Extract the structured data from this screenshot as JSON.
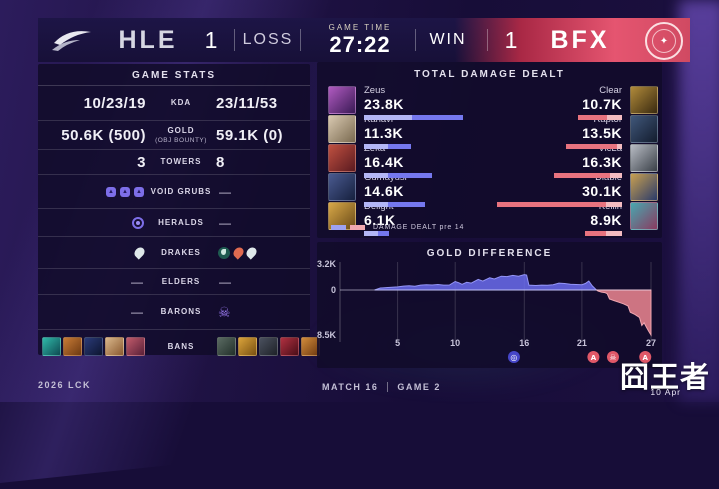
{
  "meta": {
    "league": "2026 LCK",
    "match": "MATCH 16",
    "game": "GAME 2",
    "watermark": "囧王者",
    "date": "10 Apr"
  },
  "header": {
    "game_time_label": "GAME TIME",
    "game_time": "27:22",
    "left_team": {
      "name": "HLE",
      "score": "1",
      "result": "LOSS",
      "logo": "hle-swoosh-logo"
    },
    "right_team": {
      "name": "BFX",
      "score": "1",
      "result": "WIN",
      "logo": "bfx-seal-logo"
    },
    "accent_red": "#e55570"
  },
  "game_stats": {
    "title": "GAME STATS",
    "rows": [
      {
        "type": "text",
        "label": "KDA",
        "left": "10/23/19",
        "right": "23/11/53"
      },
      {
        "type": "text",
        "label": "GOLD",
        "sublabel": "(OBJ BOUNTY)",
        "left": "50.6K (500)",
        "right": "59.1K (0)"
      },
      {
        "type": "text",
        "label": "TOWERS",
        "left": "3",
        "right": "8"
      },
      {
        "type": "icons",
        "label": "VOID GRUBS",
        "left_icons": [
          "grub",
          "grub",
          "grub"
        ],
        "right_icons": [
          "dash"
        ]
      },
      {
        "type": "icons",
        "label": "HERALDS",
        "left_icons": [
          "herald"
        ],
        "right_icons": [
          "dash"
        ]
      },
      {
        "type": "icons",
        "label": "DRAKES",
        "left_icons": [
          "drake-cloud"
        ],
        "right_icons": [
          "drake-ocean",
          "drake-infernal",
          "drake-cloud"
        ]
      },
      {
        "type": "icons",
        "label": "ELDERS",
        "left_icons": [
          "dash"
        ],
        "right_icons": [
          "dash"
        ]
      },
      {
        "type": "icons",
        "label": "BARONS",
        "left_icons": [
          "dash"
        ],
        "right_icons": [
          "baron"
        ]
      },
      {
        "type": "bans",
        "label": "BANS",
        "left_bans": [
          [
            "#2fb8a8",
            "#0e4a52"
          ],
          [
            "#c77a35",
            "#6e3a12"
          ],
          [
            "#2a3a78",
            "#0d1530"
          ],
          [
            "#d9b68a",
            "#8a5a30"
          ],
          [
            "#c05a6a",
            "#5a2038"
          ]
        ],
        "right_bans": [
          [
            "#5a6a62",
            "#22302a"
          ],
          [
            "#d9a23a",
            "#7a5212"
          ],
          [
            "#4a505e",
            "#1e2228"
          ],
          [
            "#b03040",
            "#4a0e18"
          ],
          [
            "#d08a3a",
            "#6e3a10"
          ]
        ]
      }
    ]
  },
  "damage": {
    "title": "TOTAL DAMAGE DEALT",
    "legend_label": "DAMAGE DEALT pre 14",
    "max_value": 30.1,
    "bar_blue": "#7578ee",
    "bar_red": "#e8737f",
    "left": [
      {
        "player": "Zeus",
        "value": "23.8K",
        "value_num": 23.8,
        "pre14_ratio": 0.48,
        "portrait": [
          "#b05ac0",
          "#3a1a55"
        ]
      },
      {
        "player": "Kanavi",
        "value": "11.3K",
        "value_num": 11.3,
        "pre14_ratio": 0.52,
        "portrait": [
          "#d8c8b0",
          "#7a6a50"
        ]
      },
      {
        "player": "Zeka",
        "value": "16.4K",
        "value_num": 16.4,
        "pre14_ratio": 0.35,
        "portrait": [
          "#c05040",
          "#5a1a20"
        ]
      },
      {
        "player": "Gumayusi",
        "value": "14.6K",
        "value_num": 14.6,
        "pre14_ratio": 0.4,
        "portrait": [
          "#4a5a90",
          "#16203e"
        ]
      },
      {
        "player": "Delight",
        "value": "6.1K",
        "value_num": 6.1,
        "pre14_ratio": 0.55,
        "portrait": [
          "#d8a848",
          "#6a4a18"
        ]
      }
    ],
    "right": [
      {
        "player": "Clear",
        "value": "10.7K",
        "value_num": 10.7,
        "pre14_ratio": 0.33,
        "portrait": [
          "#b08a3a",
          "#3a2a10"
        ]
      },
      {
        "player": "Raptor",
        "value": "13.5K",
        "value_num": 13.5,
        "pre14_ratio": 0.09,
        "portrait": [
          "#40577a",
          "#131c2e"
        ]
      },
      {
        "player": "VicLa",
        "value": "16.3K",
        "value_num": 16.3,
        "pre14_ratio": 0.17,
        "portrait": [
          "#b8bcc4",
          "#3a4048"
        ]
      },
      {
        "player": "Diable",
        "value": "30.1K",
        "value_num": 30.1,
        "pre14_ratio": 0.13,
        "portrait": [
          "#c8a050",
          "#2a3a6a"
        ]
      },
      {
        "player": "Kellin",
        "value": "8.9K",
        "value_num": 8.9,
        "pre14_ratio": 0.42,
        "portrait": [
          "#48a8b0",
          "#8a3a60"
        ]
      }
    ]
  },
  "chart_data": {
    "type": "area",
    "title": "GOLD DIFFERENCE",
    "ylabel_top": "3.2K",
    "ylabel_zero": "0",
    "ylabel_bottom": "8.5K",
    "y_range": [
      -8500,
      3200
    ],
    "x_range": [
      0,
      27
    ],
    "x_ticks": [
      5,
      10,
      16,
      21,
      27
    ],
    "grid": true,
    "positive_color": "#6b6cee",
    "negative_color": "#e2808c",
    "series": [
      {
        "name": "gold_diff",
        "points": [
          [
            3,
            0
          ],
          [
            3.5,
            250
          ],
          [
            4,
            300
          ],
          [
            5,
            380
          ],
          [
            5.5,
            480
          ],
          [
            6,
            520
          ],
          [
            6.5,
            450
          ],
          [
            7,
            600
          ],
          [
            7.5,
            650
          ],
          [
            8,
            620
          ],
          [
            8.5,
            680
          ],
          [
            9,
            600
          ],
          [
            9.5,
            620
          ],
          [
            10,
            1050
          ],
          [
            10.3,
            900
          ],
          [
            10.6,
            700
          ],
          [
            11,
            950
          ],
          [
            11.4,
            850
          ],
          [
            12,
            1300
          ],
          [
            12.4,
            1100
          ],
          [
            13,
            1500
          ],
          [
            13.4,
            1350
          ],
          [
            14,
            1700
          ],
          [
            14.5,
            1650
          ],
          [
            15,
            1800
          ],
          [
            15.5,
            1700
          ],
          [
            16,
            1900
          ],
          [
            16.2,
            1850
          ],
          [
            16.4,
            600
          ],
          [
            17,
            550
          ],
          [
            17.5,
            600
          ],
          [
            18,
            580
          ],
          [
            18.5,
            650
          ],
          [
            19,
            850
          ],
          [
            19.5,
            800
          ],
          [
            20,
            700
          ],
          [
            20.5,
            680
          ],
          [
            21,
            650
          ],
          [
            21.3,
            800
          ],
          [
            21.6,
            1100
          ],
          [
            21.9,
            500
          ],
          [
            22.2,
            100
          ],
          [
            22.4,
            -200
          ],
          [
            22.7,
            -400
          ],
          [
            23,
            -500
          ],
          [
            23.2,
            -700
          ],
          [
            23.4,
            -1700
          ],
          [
            23.8,
            -2000
          ],
          [
            24.2,
            -2300
          ],
          [
            24.6,
            -2600
          ],
          [
            25,
            -3000
          ],
          [
            25.2,
            -4200
          ],
          [
            25.6,
            -4600
          ],
          [
            26,
            -5200
          ],
          [
            26.2,
            -6700
          ],
          [
            26.4,
            -6200
          ],
          [
            26.6,
            -7000
          ],
          [
            26.8,
            -7800
          ],
          [
            27,
            -8500
          ]
        ]
      }
    ],
    "events": [
      {
        "m": 15.1,
        "icon": "herald",
        "color": "#4646c8"
      },
      {
        "m": 22.0,
        "icon": "atakhan",
        "color": "#e05868"
      },
      {
        "m": 23.7,
        "icon": "baron",
        "color": "#e05868"
      },
      {
        "m": 26.5,
        "icon": "atakhan",
        "color": "#e05868"
      }
    ]
  }
}
